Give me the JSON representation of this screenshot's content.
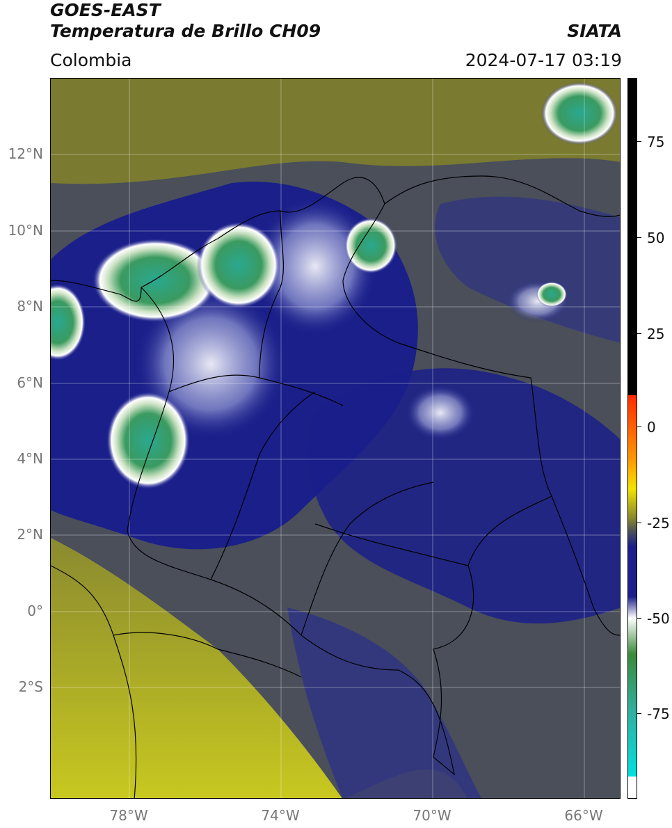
{
  "header": {
    "satellite": "GOES-EAST",
    "product": "Temperatura de Brillo CH09",
    "region": "Colombia",
    "source": "SIATA",
    "datetime": "2024-07-17 03:19"
  },
  "map": {
    "lat_ticks": [
      "12°N",
      "10°N",
      "8°N",
      "6°N",
      "4°N",
      "2°N",
      "0°",
      "2°S"
    ],
    "lon_ticks": [
      "78°W",
      "74°W",
      "70°W",
      "66°W"
    ]
  },
  "colorbar": {
    "ticks": [
      "75",
      "50",
      "25",
      "0",
      "-25",
      "-50",
      "-75"
    ],
    "colors": {
      "black": "#000000",
      "red": "#ff2a00",
      "orange": "#ff9900",
      "yellow": "#f4e400",
      "olive": "#8a8a2a",
      "gray": "#4a4f5a",
      "navy": "#1a1f8a",
      "white": "#ffffff",
      "green": "#3a8a3a",
      "teal": "#30b0a0",
      "cyan": "#00e0e0"
    }
  }
}
